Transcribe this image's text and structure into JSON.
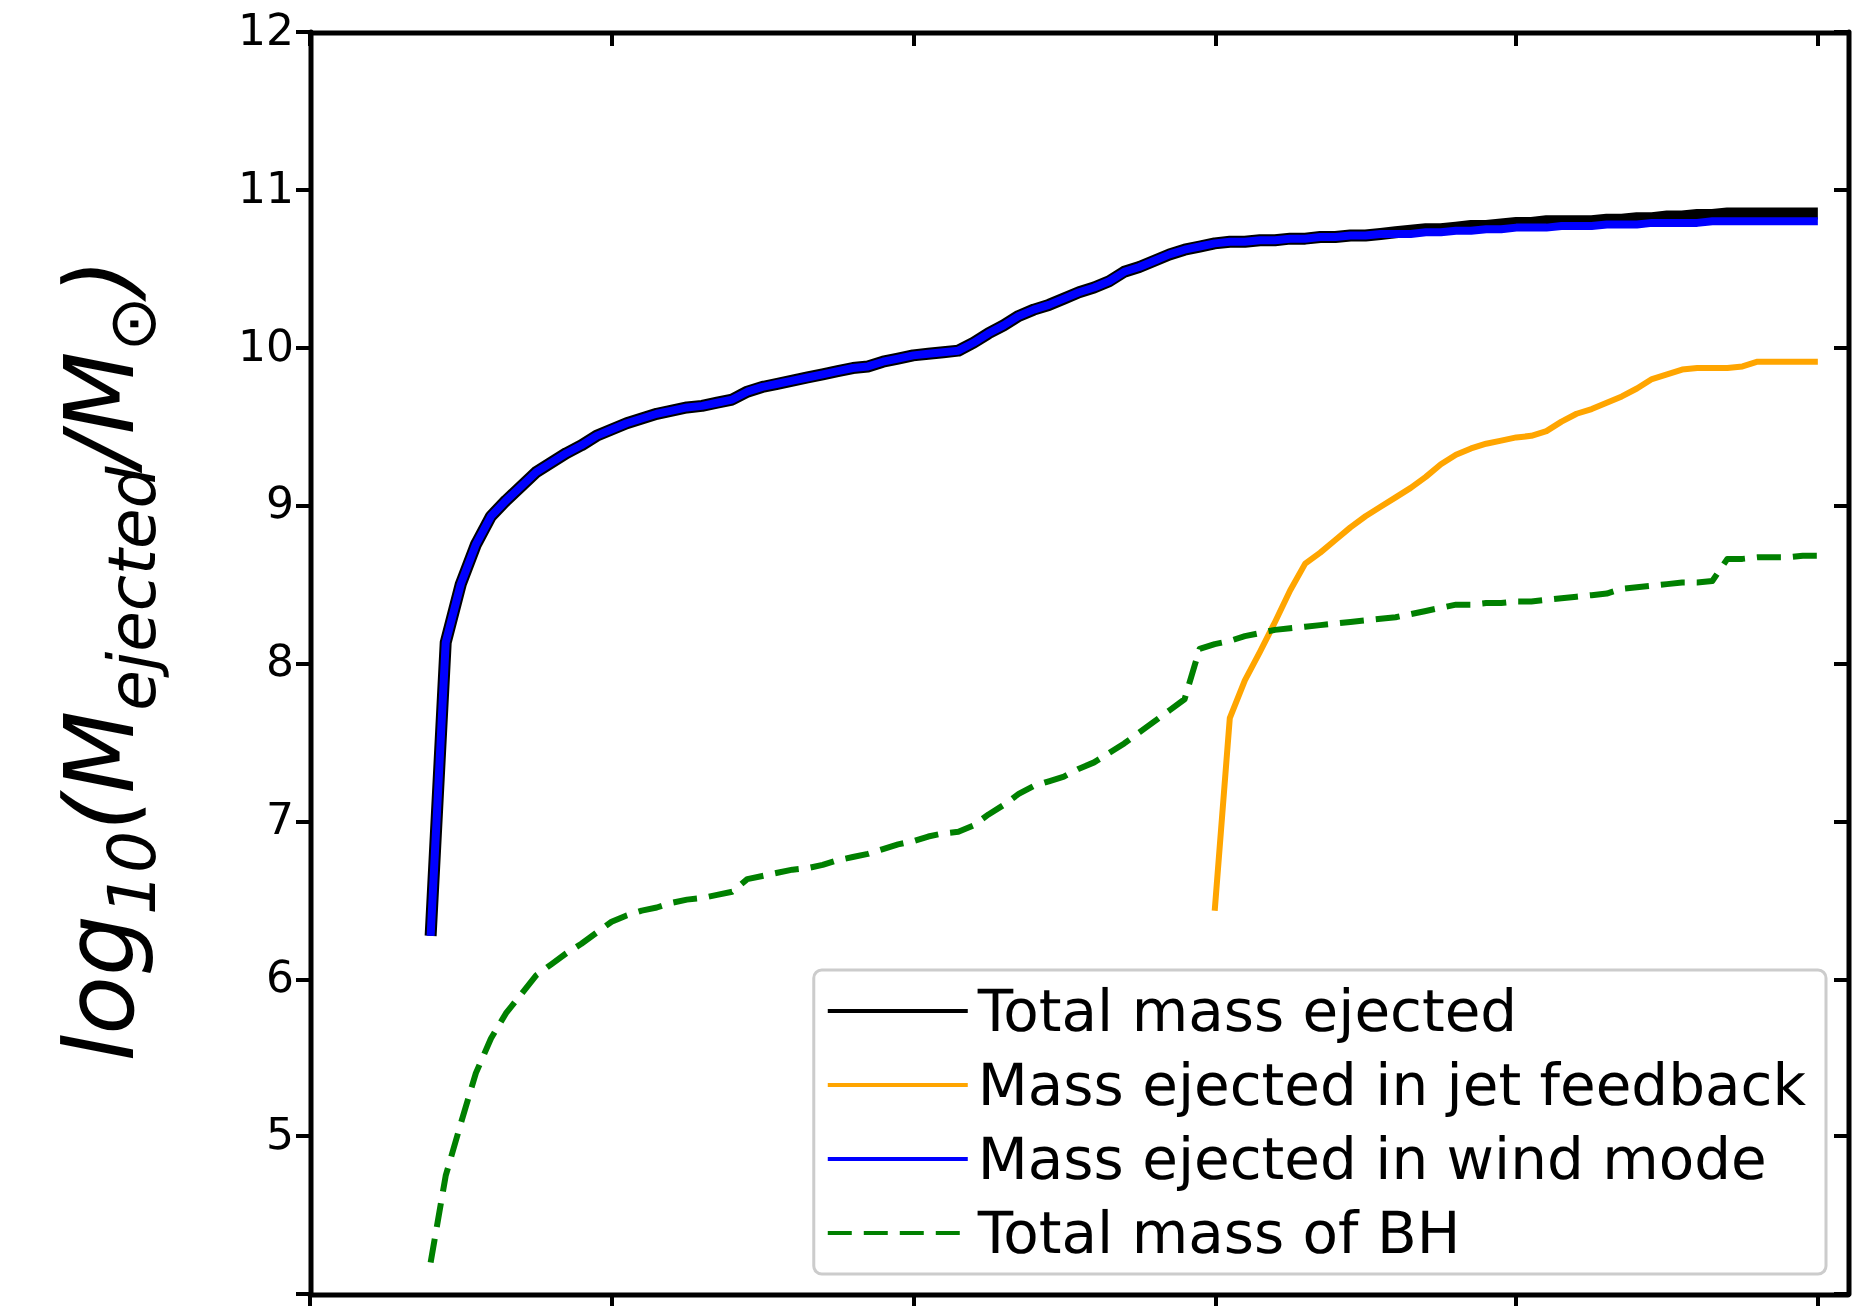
{
  "chart_data": {
    "type": "line",
    "ylabel": "log$_{10}$(M$_{ejected}$/M$_{⊙}$)",
    "categories": [
      null,
      null,
      null,
      null,
      null,
      null,
      null,
      null,
      null,
      null,
      null,
      null,
      null,
      null,
      null,
      null,
      null,
      null,
      null,
      null,
      null,
      null,
      null,
      null,
      null,
      null,
      null,
      null,
      null,
      null,
      null,
      null,
      null,
      null,
      null,
      null,
      null,
      null,
      null,
      null,
      null,
      null,
      null,
      null,
      null,
      null,
      null,
      null,
      null,
      null,
      null,
      null,
      null,
      null,
      null,
      null,
      null,
      null,
      null,
      null,
      null,
      null,
      null,
      null,
      null,
      null,
      null,
      null,
      null,
      null,
      null,
      null,
      null,
      null,
      null,
      null,
      null,
      null,
      null,
      null,
      null,
      null,
      null,
      null,
      null,
      null,
      null,
      null,
      null,
      null,
      null,
      null,
      null,
      null,
      null,
      null,
      null,
      null,
      null,
      null,
      null,
      null,
      null
    ],
    "series": [
      {
        "name": "Total mass ejected",
        "color": "#000000",
        "values": [
          null,
          null,
          null,
          null,
          null,
          null,
          null,
          null,
          6.27,
          8.13,
          8.5,
          8.75,
          8.93,
          9.03,
          9.12,
          9.21,
          9.27,
          9.33,
          9.38,
          9.44,
          9.48,
          9.52,
          9.55,
          9.58,
          9.6,
          9.62,
          9.63,
          9.65,
          9.67,
          9.72,
          9.75,
          9.77,
          9.79,
          9.81,
          9.83,
          9.85,
          9.87,
          9.88,
          9.91,
          9.93,
          9.95,
          9.96,
          9.97,
          9.98,
          10.03,
          10.09,
          10.14,
          10.2,
          10.24,
          10.27,
          10.31,
          10.35,
          10.38,
          10.42,
          10.48,
          10.51,
          10.55,
          10.59,
          10.62,
          10.64,
          10.66,
          10.67,
          10.67,
          10.68,
          10.68,
          10.69,
          10.69,
          10.7,
          10.7,
          10.71,
          10.71,
          10.72,
          10.73,
          10.74,
          10.75,
          10.75,
          10.76,
          10.77,
          10.77,
          10.78,
          10.79,
          10.79,
          10.8,
          10.8,
          10.8,
          10.8,
          10.81,
          10.81,
          10.82,
          10.82,
          10.83,
          10.83,
          10.84,
          10.84,
          10.85,
          10.85,
          10.85,
          10.85,
          10.85,
          10.85,
          10.85,
          null,
          null
        ]
      },
      {
        "name": "Mass ejected in jet feedback",
        "color": "#ffa500",
        "values": [
          null,
          null,
          null,
          null,
          null,
          null,
          null,
          null,
          null,
          null,
          null,
          null,
          null,
          null,
          null,
          null,
          null,
          null,
          null,
          null,
          null,
          null,
          null,
          null,
          null,
          null,
          null,
          null,
          null,
          null,
          null,
          null,
          null,
          null,
          null,
          null,
          null,
          null,
          null,
          null,
          null,
          null,
          null,
          null,
          null,
          null,
          null,
          null,
          null,
          null,
          null,
          null,
          null,
          null,
          null,
          null,
          null,
          null,
          null,
          null,
          6.43,
          7.65,
          7.89,
          8.07,
          8.26,
          8.46,
          8.63,
          8.7,
          8.78,
          8.86,
          8.93,
          8.99,
          9.05,
          9.11,
          9.18,
          9.26,
          9.32,
          9.36,
          9.39,
          9.41,
          9.43,
          9.44,
          9.47,
          9.53,
          9.58,
          9.61,
          9.65,
          9.69,
          9.74,
          9.8,
          9.83,
          9.86,
          9.87,
          9.87,
          9.87,
          9.88,
          9.91,
          9.91,
          9.91,
          9.91,
          9.91,
          null,
          null
        ]
      },
      {
        "name": "Mass ejected in wind mode",
        "color": "#0000ff",
        "values": [
          null,
          null,
          null,
          null,
          null,
          null,
          null,
          null,
          6.27,
          8.13,
          8.5,
          8.75,
          8.93,
          9.03,
          9.12,
          9.21,
          9.27,
          9.33,
          9.38,
          9.44,
          9.48,
          9.52,
          9.55,
          9.58,
          9.6,
          9.62,
          9.63,
          9.65,
          9.67,
          9.72,
          9.75,
          9.77,
          9.79,
          9.81,
          9.83,
          9.85,
          9.87,
          9.88,
          9.91,
          9.93,
          9.95,
          9.96,
          9.97,
          9.98,
          10.03,
          10.09,
          10.14,
          10.2,
          10.24,
          10.27,
          10.31,
          10.35,
          10.38,
          10.42,
          10.48,
          10.51,
          10.55,
          10.59,
          10.62,
          10.64,
          10.66,
          10.67,
          10.67,
          10.68,
          10.68,
          10.69,
          10.69,
          10.7,
          10.7,
          10.71,
          10.71,
          10.72,
          10.72,
          10.72,
          10.73,
          10.73,
          10.74,
          10.74,
          10.75,
          10.75,
          10.76,
          10.76,
          10.76,
          10.77,
          10.77,
          10.77,
          10.78,
          10.78,
          10.78,
          10.79,
          10.79,
          10.79,
          10.79,
          10.8,
          10.8,
          10.8,
          10.8,
          10.8,
          10.8,
          10.8,
          10.8,
          null,
          null
        ]
      },
      {
        "name": "Total mass of BH",
        "color": "#008000",
        "line_style": "dashed",
        "values": [
          null,
          null,
          null,
          null,
          null,
          null,
          null,
          null,
          4.2,
          4.75,
          5.08,
          5.4,
          5.62,
          5.78,
          5.9,
          6.02,
          6.09,
          6.16,
          6.22,
          6.29,
          6.36,
          6.4,
          6.43,
          6.45,
          6.48,
          6.5,
          6.51,
          6.53,
          6.55,
          6.63,
          6.65,
          6.67,
          6.69,
          6.7,
          6.72,
          6.75,
          6.77,
          6.79,
          6.82,
          6.85,
          6.87,
          6.9,
          6.92,
          6.93,
          6.97,
          7.04,
          7.1,
          7.17,
          7.22,
          7.25,
          7.28,
          7.33,
          7.37,
          7.43,
          7.49,
          7.56,
          7.63,
          7.7,
          7.77,
          8.09,
          8.12,
          8.14,
          8.17,
          8.19,
          8.21,
          8.22,
          8.23,
          8.24,
          8.25,
          8.26,
          8.27,
          8.28,
          8.29,
          8.31,
          8.33,
          8.35,
          8.37,
          8.37,
          8.38,
          8.38,
          8.39,
          8.39,
          8.4,
          8.41,
          8.42,
          8.43,
          8.44,
          8.47,
          8.48,
          8.49,
          8.5,
          8.51,
          8.51,
          8.52,
          8.66,
          8.66,
          8.67,
          8.67,
          8.67,
          8.68,
          8.68,
          null,
          null
        ]
      }
    ],
    "ylim": [
      4,
      12
    ],
    "yticks": [
      {
        "value": 4,
        "label": null
      },
      5,
      6,
      7,
      8,
      9,
      10,
      11,
      12
    ],
    "tick_labels": "y",
    "grid": false,
    "legend": "bottom right",
    "line_style": "solid"
  }
}
